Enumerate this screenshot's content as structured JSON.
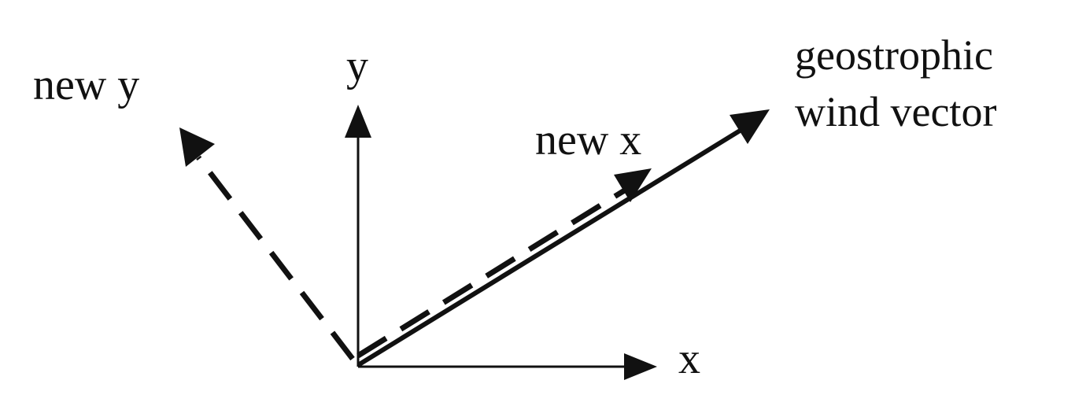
{
  "labels": {
    "x_axis": "x",
    "y_axis": "y",
    "new_x": "new x",
    "new_y": "new y",
    "wind_line1": "geostrophic",
    "wind_line2": "wind vector"
  },
  "colors": {
    "ink": "#111111",
    "background": "#ffffff"
  }
}
